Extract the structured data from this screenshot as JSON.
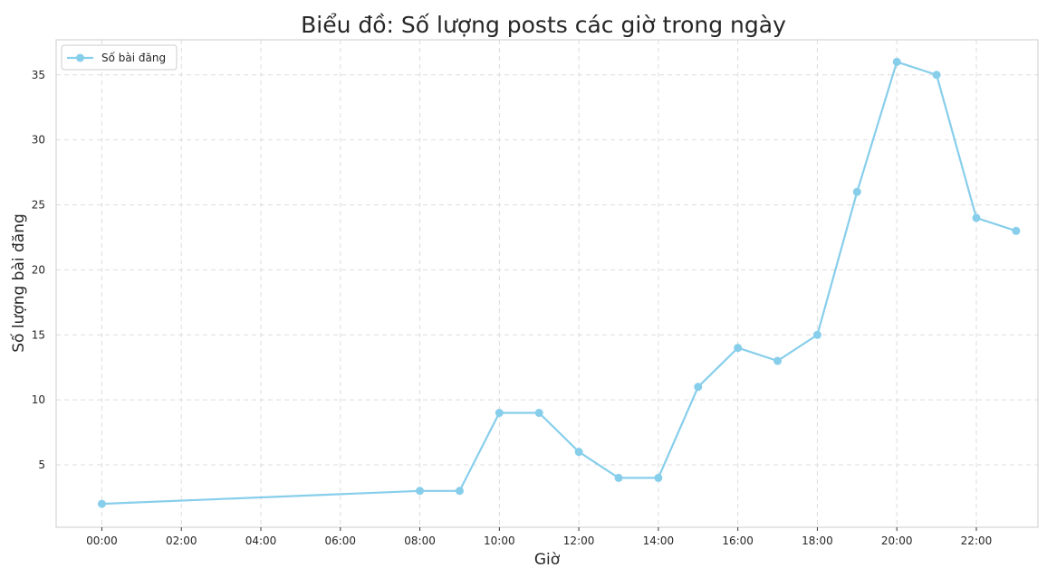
{
  "chart_data": {
    "type": "line",
    "title": "Biểu đồ: Số lượng posts các giờ trong ngày",
    "xlabel": "Giờ",
    "ylabel": "Số lượng bài đăng",
    "x_unit": "hour of day",
    "xlim": [
      -1.15,
      23.55
    ],
    "ylim": [
      0.2,
      37.7
    ],
    "x_ticks": [
      0,
      2,
      4,
      6,
      8,
      10,
      12,
      14,
      16,
      18,
      20,
      22
    ],
    "x_tick_labels": [
      "00:00",
      "02:00",
      "04:00",
      "06:00",
      "08:00",
      "10:00",
      "12:00",
      "14:00",
      "16:00",
      "18:00",
      "20:00",
      "22:00"
    ],
    "y_ticks": [
      5,
      10,
      15,
      20,
      25,
      30,
      35
    ],
    "y_tick_labels": [
      "5",
      "10",
      "15",
      "20",
      "25",
      "30",
      "35"
    ],
    "grid": true,
    "legend_position": "top-left",
    "series": [
      {
        "name": "Số bài đăng",
        "color": "#87ceeb",
        "marker": "circle",
        "x": [
          0,
          8,
          9,
          10,
          11,
          12,
          13,
          14,
          15,
          16,
          17,
          18,
          19,
          20,
          21,
          22,
          23
        ],
        "y": [
          2,
          3,
          3,
          9,
          9,
          6,
          4,
          4,
          11,
          14,
          13,
          15,
          26,
          36,
          35,
          24,
          23
        ]
      }
    ]
  }
}
